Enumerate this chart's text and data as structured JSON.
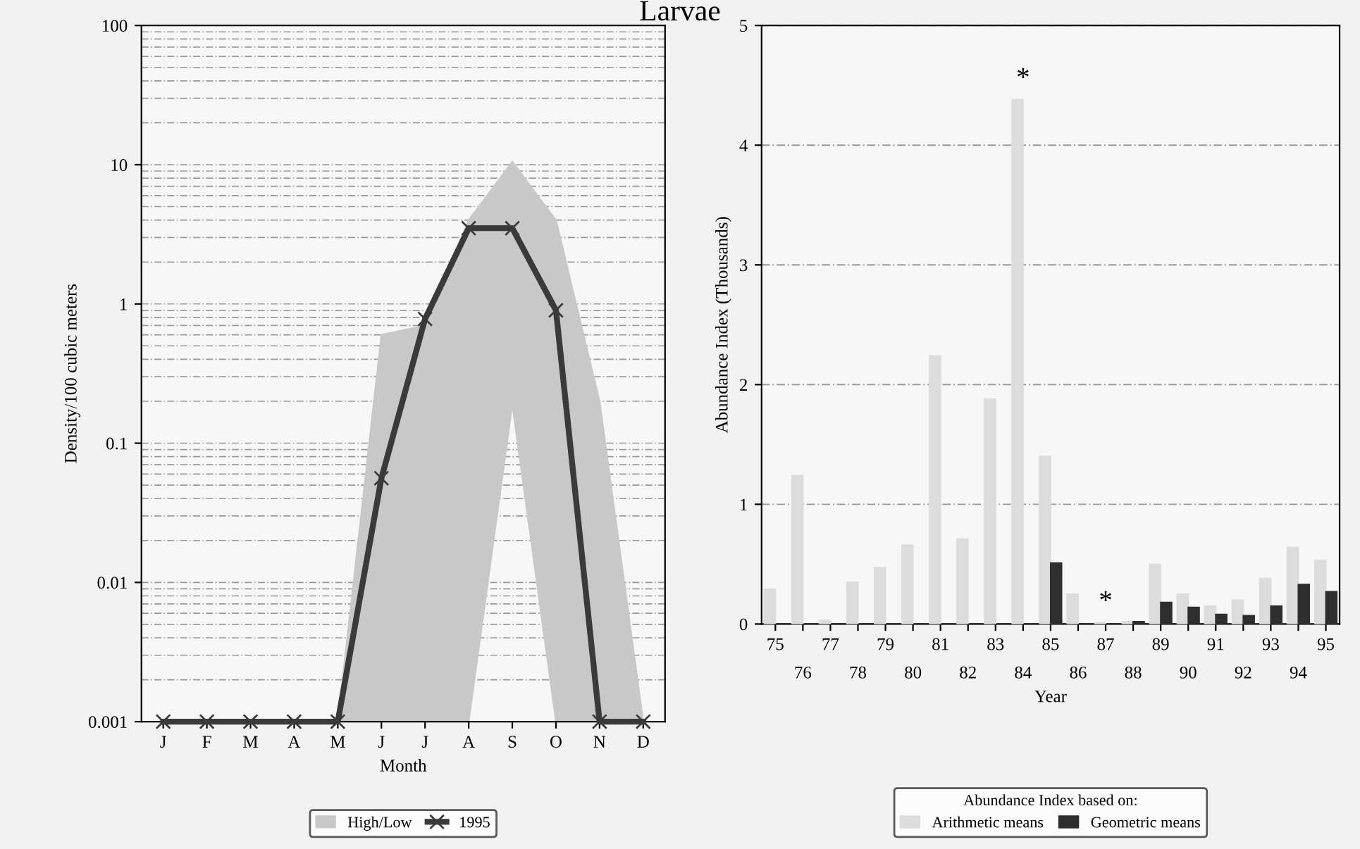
{
  "chart_data": [
    {
      "type": "line",
      "title": "Larvae",
      "xlabel": "Month",
      "ylabel": "Density/100 cubic meters",
      "categories": [
        "J",
        "F",
        "M",
        "A",
        "M",
        "J",
        "J",
        "A",
        "S",
        "O",
        "N",
        "D"
      ],
      "log": "y",
      "ylim": [
        0.001,
        100
      ],
      "yticks": [
        0.001,
        0.01,
        0.1,
        1,
        10,
        100
      ],
      "grid": "y",
      "legend": "bottom",
      "series": [
        {
          "name": "High/Low",
          "type": "area",
          "color": "#c8c8c8",
          "values": [
            null,
            null,
            null,
            null,
            null,
            null,
            null,
            null,
            null,
            null,
            null,
            null
          ],
          "upper": [
            0.001,
            0.001,
            0.001,
            0.001,
            0.001,
            0.6,
            0.7,
            4,
            10.5,
            4,
            0.2,
            0.001
          ],
          "lower": [
            0.001,
            0.001,
            0.001,
            0.001,
            0.001,
            0.001,
            0.001,
            0.001,
            0.19,
            0.001,
            0.001,
            0.001
          ]
        },
        {
          "name": "1995",
          "type": "line",
          "color": "#3a3a3a",
          "marker": "cross",
          "values": [
            0.001,
            0.001,
            0.001,
            0.001,
            0.001,
            0.056,
            0.78,
            3.5,
            3.5,
            0.9,
            0.001,
            0.001
          ]
        }
      ]
    },
    {
      "type": "bar",
      "xlabel": "Year",
      "ylabel": "Abundance Index (Thousands)",
      "legend_title": "Abundance Index based on:",
      "categories": [
        "75",
        "76",
        "77",
        "78",
        "79",
        "80",
        "81",
        "82",
        "83",
        "84",
        "85",
        "86",
        "87",
        "88",
        "89",
        "90",
        "91",
        "92",
        "93",
        "94",
        "95"
      ],
      "ylim": [
        0,
        5
      ],
      "yticks": [
        0,
        1,
        2,
        3,
        4,
        5
      ],
      "grid": "y",
      "legend": "bottom",
      "series": [
        {
          "name": "Arithmetic means",
          "color": "#dcdcdc",
          "values": [
            0.29,
            1.24,
            0.03,
            0.35,
            0.47,
            0.66,
            2.24,
            0.71,
            1.88,
            4.38,
            1.4,
            0.25,
            0.01,
            0.02,
            0.5,
            0.25,
            0.15,
            0.2,
            0.38,
            0.64,
            0.53
          ]
        },
        {
          "name": "Geometric means",
          "color": "#2e2e2e",
          "values": [
            null,
            null,
            null,
            null,
            null,
            null,
            null,
            null,
            null,
            null,
            0.51,
            null,
            null,
            0.02,
            0.18,
            0.14,
            0.08,
            0.07,
            0.15,
            0.33,
            0.27
          ]
        }
      ],
      "annotations": [
        {
          "text": "*",
          "x": "84",
          "y": 4.38
        },
        {
          "text": "*",
          "x": "87",
          "y": 0.01
        }
      ]
    }
  ]
}
